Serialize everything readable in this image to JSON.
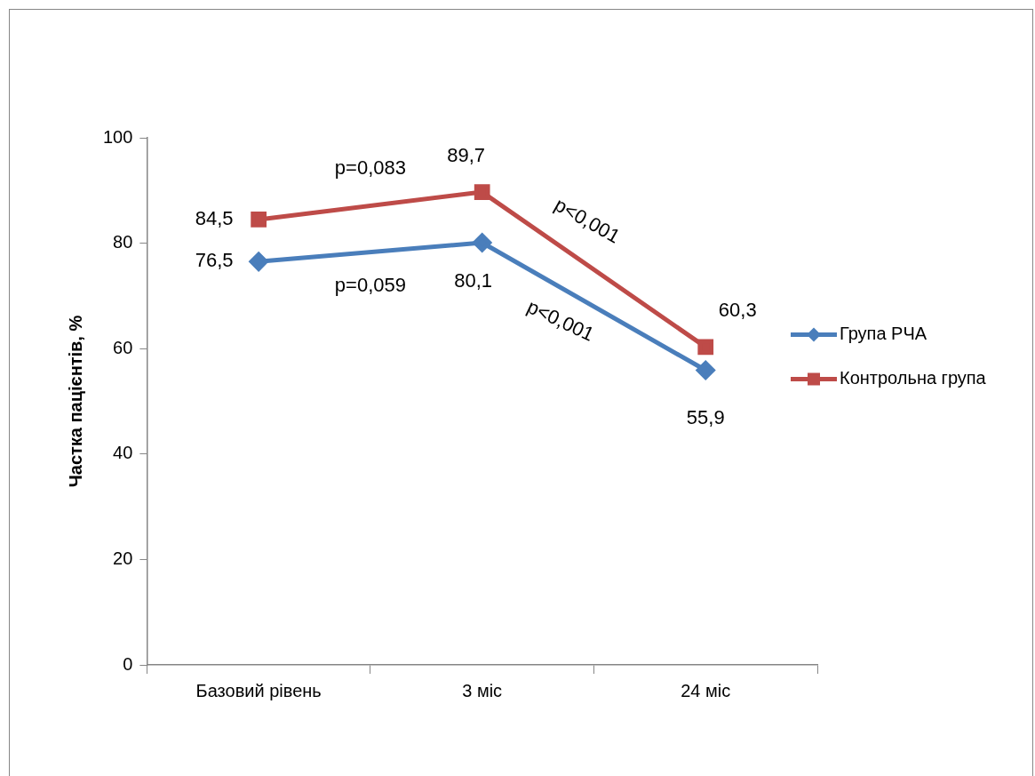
{
  "chart_data": {
    "type": "line",
    "ylabel": "Частка пацієнтів, %",
    "categories": [
      "Базовий рівень",
      "3 міс",
      "24 міс"
    ],
    "series": [
      {
        "name": "Група РЧА",
        "color": "#4a7ebb",
        "marker": "diamond",
        "values": [
          76.5,
          80.1,
          55.9
        ],
        "value_labels": [
          "76,5",
          "80,1",
          "55,9"
        ]
      },
      {
        "name": "Контрольна група",
        "color": "#be4b48",
        "marker": "square",
        "values": [
          84.5,
          89.7,
          60.3
        ],
        "value_labels": [
          "84,5",
          "89,7",
          "60,3"
        ]
      }
    ],
    "annotations": [
      "p=0,083",
      "p=0,059",
      "p<0,001",
      "p<0,001"
    ],
    "ylim": [
      0,
      100
    ],
    "yticks": [
      0,
      20,
      40,
      60,
      80,
      100
    ],
    "grid": false,
    "legend": "right"
  }
}
